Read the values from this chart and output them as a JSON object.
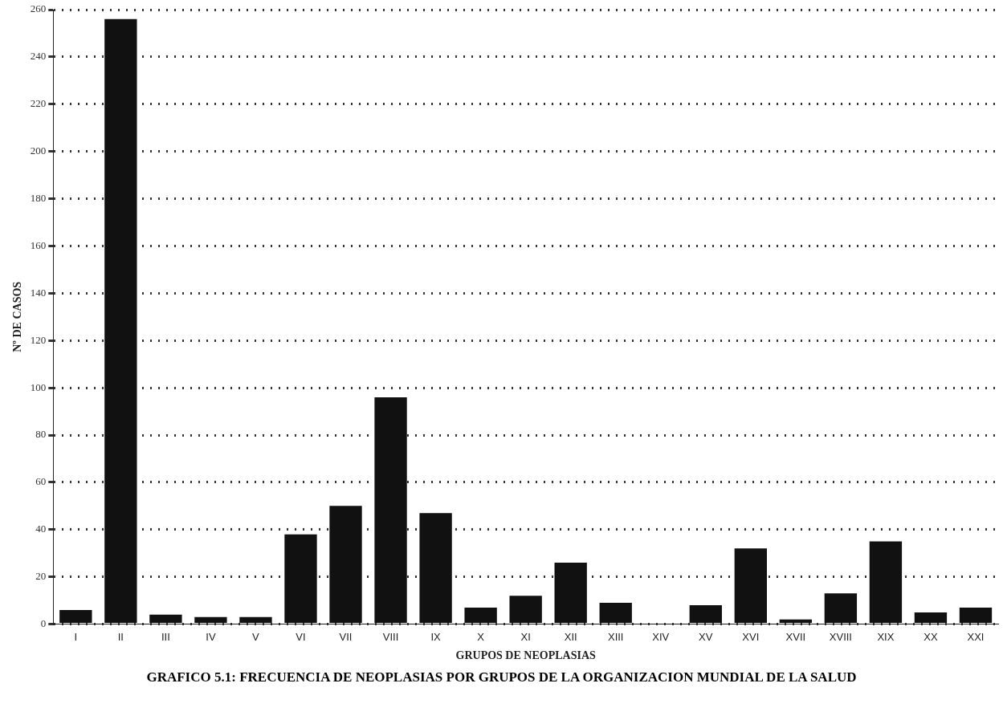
{
  "chart_data": {
    "type": "bar",
    "title": "GRAFICO 5.1: FRECUENCIA DE NEOPLASIAS POR GRUPOS DE LA ORGANIZACION MUNDIAL DE LA SALUD",
    "xlabel": "GRUPOS DE NEOPLASIAS",
    "ylabel": "Nº DE CASOS",
    "categories": [
      "I",
      "II",
      "III",
      "IV",
      "V",
      "VI",
      "VII",
      "VIII",
      "IX",
      "X",
      "XI",
      "XII",
      "XIII",
      "XIV",
      "XV",
      "XVI",
      "XVII",
      "XVIII",
      "XIX",
      "XX",
      "XXI"
    ],
    "values": [
      6,
      256,
      4,
      3,
      3,
      38,
      50,
      96,
      47,
      7,
      12,
      26,
      9,
      0,
      8,
      32,
      2,
      13,
      35,
      5,
      7
    ],
    "color": "#111111",
    "ylim": [
      0,
      260
    ],
    "yticks": [
      0,
      20,
      40,
      60,
      80,
      100,
      120,
      140,
      160,
      180,
      200,
      220,
      240,
      260
    ],
    "grid": "y",
    "line_style": "dotted"
  }
}
